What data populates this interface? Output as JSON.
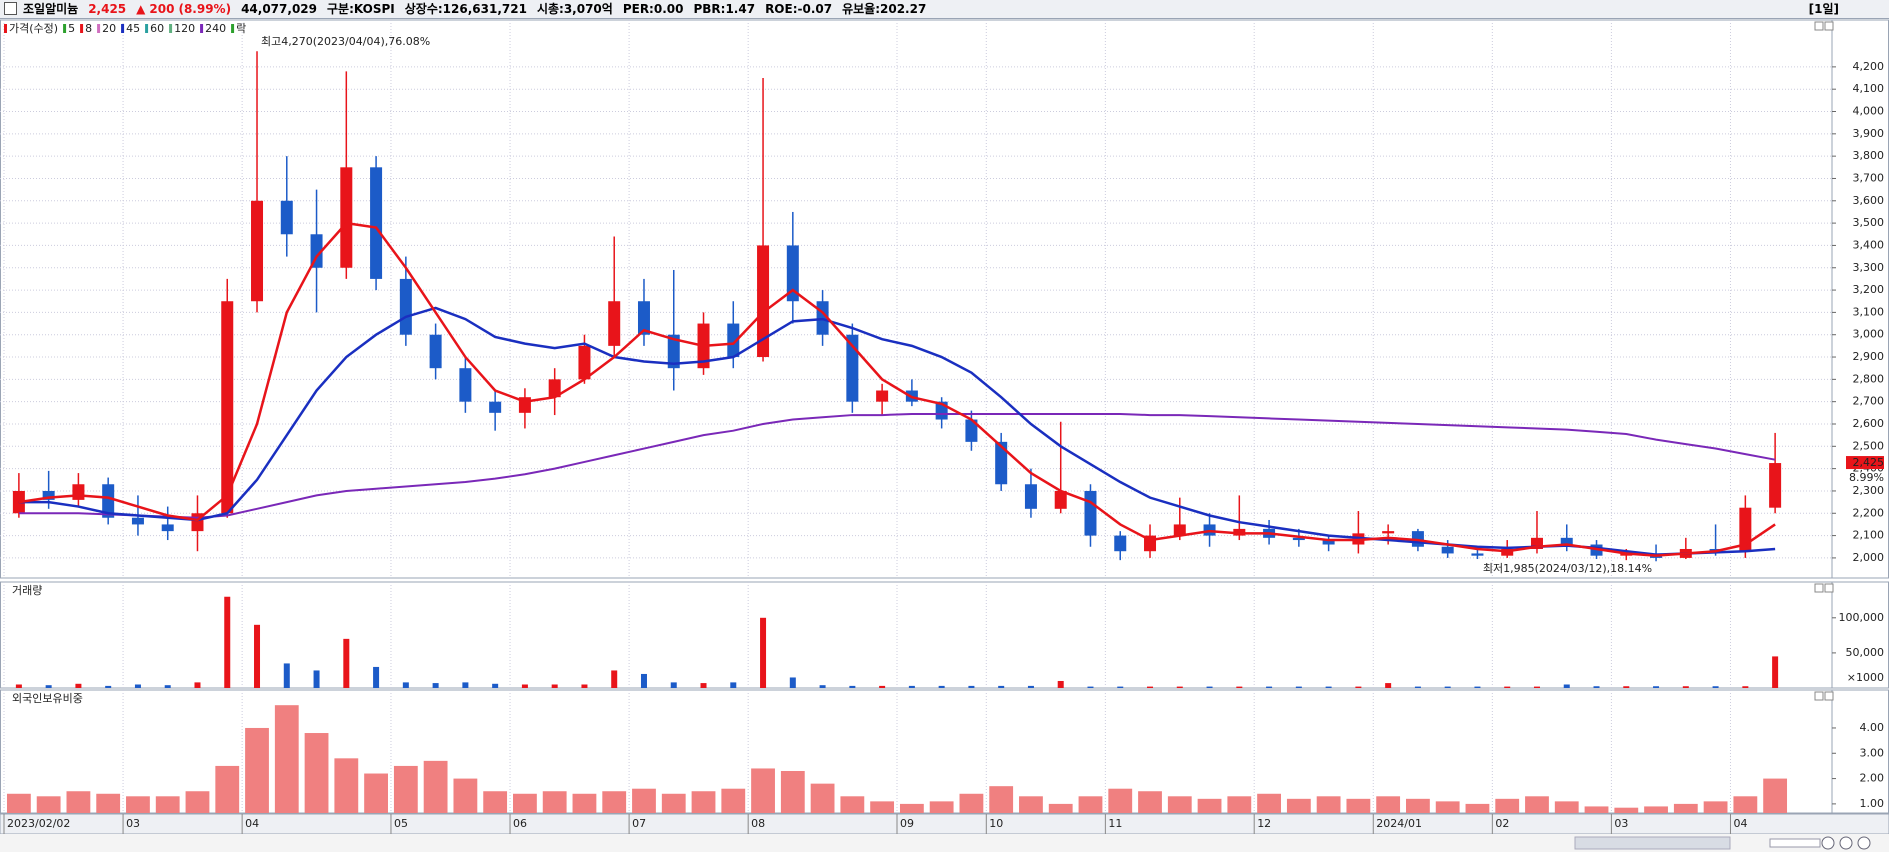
{
  "header": {
    "name": "조일알미늄",
    "price": "2,425",
    "arrow": "▲",
    "change": "200",
    "change_pct": "(8.99%)",
    "volume": "44,077,029",
    "items": [
      "구분:KOSPI",
      "상장수:126,631,721",
      "시총:3,070억",
      "PER:0.00",
      "PBR:1.47",
      "ROE:-0.07",
      "유보율:202.27"
    ],
    "period": "[1일]"
  },
  "chart_data": [
    {
      "type": "candlestick",
      "legend": [
        {
          "label": "가격(수정)",
          "color": "#e8141a"
        },
        {
          "label": "5",
          "color": "#2ca02c"
        },
        {
          "label": "8",
          "color": "#e8141a"
        },
        {
          "label": "20",
          "color": "#d070c0"
        },
        {
          "label": "45",
          "color": "#1a2fc0"
        },
        {
          "label": "60",
          "color": "#2aa0a0"
        },
        {
          "label": "120",
          "color": "#60b080"
        },
        {
          "label": "240",
          "color": "#7a28b8"
        },
        {
          "label": "락",
          "color": "#2ca02c"
        }
      ],
      "colors": {
        "up": "#e8141a",
        "down": "#1c5bc8"
      },
      "open": [
        2200,
        2300,
        2260,
        2330,
        2180,
        2150,
        2120,
        2200,
        3150,
        3600,
        3450,
        3300,
        3750,
        3250,
        3000,
        2850,
        2700,
        2650,
        2720,
        2800,
        2950,
        3150,
        3000,
        2850,
        3050,
        2900,
        3400,
        3150,
        3000,
        2700,
        2750,
        2700,
        2620,
        2520,
        2330,
        2220,
        2300,
        2100,
        2030,
        2100,
        2150,
        2100,
        2130,
        2090,
        2080,
        2060,
        2110,
        2120,
        2050,
        2020,
        2010,
        2040,
        2090,
        2060,
        2010,
        2020,
        2000,
        2040,
        2030,
        2225
      ],
      "high": [
        2380,
        2390,
        2380,
        2360,
        2280,
        2230,
        2280,
        3250,
        4270,
        3800,
        3650,
        4180,
        3800,
        3350,
        3050,
        2900,
        2750,
        2760,
        2850,
        3000,
        3440,
        3250,
        3290,
        3100,
        3150,
        4150,
        3550,
        3200,
        3050,
        2780,
        2800,
        2720,
        2660,
        2560,
        2400,
        2610,
        2330,
        2120,
        2150,
        2270,
        2200,
        2280,
        2170,
        2130,
        2100,
        2210,
        2150,
        2130,
        2080,
        2050,
        2080,
        2210,
        2150,
        2080,
        2040,
        2060,
        2090,
        2150,
        2280,
        2560
      ],
      "low": [
        2180,
        2220,
        2230,
        2150,
        2100,
        2080,
        2030,
        2180,
        3100,
        3350,
        3100,
        3250,
        3200,
        2950,
        2800,
        2650,
        2570,
        2580,
        2640,
        2780,
        2900,
        2950,
        2750,
        2820,
        2850,
        2880,
        3050,
        2950,
        2650,
        2640,
        2680,
        2580,
        2480,
        2300,
        2180,
        2200,
        2050,
        1990,
        2000,
        2080,
        2050,
        2080,
        2060,
        2050,
        2030,
        2020,
        2060,
        2030,
        2000,
        1995,
        2000,
        2020,
        2030,
        1995,
        1990,
        1985,
        1995,
        2010,
        2000,
        2200
      ],
      "close": [
        2300,
        2260,
        2330,
        2180,
        2150,
        2120,
        2200,
        3150,
        3600,
        3450,
        3300,
        3750,
        3250,
        3000,
        2850,
        2700,
        2650,
        2720,
        2800,
        2950,
        3150,
        3000,
        2850,
        3050,
        2900,
        3400,
        3150,
        3000,
        2700,
        2750,
        2700,
        2620,
        2520,
        2330,
        2220,
        2300,
        2100,
        2030,
        2100,
        2150,
        2100,
        2130,
        2090,
        2080,
        2060,
        2110,
        2120,
        2050,
        2020,
        2010,
        2040,
        2090,
        2060,
        2010,
        2020,
        2000,
        2040,
        2030,
        2225,
        2425
      ],
      "series": [
        {
          "color": "#7a28b8",
          "values": [
            2200,
            2200,
            2200,
            2195,
            2190,
            2185,
            2180,
            2190,
            2220,
            2250,
            2280,
            2300,
            2310,
            2320,
            2330,
            2340,
            2355,
            2375,
            2400,
            2430,
            2460,
            2490,
            2520,
            2550,
            2570,
            2600,
            2620,
            2630,
            2640,
            2640,
            2645,
            2645,
            2645,
            2645,
            2645,
            2645,
            2645,
            2645,
            2640,
            2640,
            2635,
            2630,
            2625,
            2620,
            2615,
            2610,
            2605,
            2600,
            2595,
            2590,
            2585,
            2580,
            2575,
            2565,
            2555,
            2530,
            2510,
            2490,
            2465,
            2440
          ]
        },
        {
          "color": "#1a2fc0",
          "values": [
            2250,
            2250,
            2230,
            2200,
            2190,
            2180,
            2170,
            2200,
            2350,
            2550,
            2750,
            2900,
            3000,
            3080,
            3120,
            3070,
            2990,
            2960,
            2940,
            2960,
            2900,
            2880,
            2870,
            2880,
            2900,
            2980,
            3060,
            3070,
            3030,
            2980,
            2950,
            2900,
            2830,
            2720,
            2600,
            2500,
            2420,
            2340,
            2270,
            2230,
            2190,
            2160,
            2140,
            2120,
            2100,
            2090,
            2080,
            2070,
            2060,
            2050,
            2045,
            2050,
            2055,
            2045,
            2030,
            2015,
            2020,
            2025,
            2030,
            2040
          ]
        },
        {
          "color": "#e8141a",
          "values": [
            2250,
            2270,
            2280,
            2270,
            2230,
            2190,
            2170,
            2280,
            2600,
            3100,
            3350,
            3500,
            3480,
            3300,
            3100,
            2900,
            2750,
            2700,
            2720,
            2800,
            2900,
            3020,
            2980,
            2950,
            2960,
            3100,
            3200,
            3100,
            2950,
            2800,
            2720,
            2690,
            2620,
            2500,
            2380,
            2300,
            2250,
            2150,
            2080,
            2100,
            2120,
            2110,
            2110,
            2095,
            2080,
            2080,
            2090,
            2080,
            2060,
            2040,
            2030,
            2050,
            2060,
            2040,
            2020,
            2010,
            2020,
            2030,
            2060,
            2150
          ]
        }
      ],
      "annotations": [
        "최고4,270(2023/04/04),76.08%",
        "최저1,985(2024/03/12),18.14%"
      ],
      "last_price_label": "2,425",
      "last_change_label": "8.99%",
      "ylim": [
        1910,
        4410
      ],
      "grid": true,
      "yticks": [
        {
          "value": 2000,
          "label": "2,000"
        },
        {
          "value": 2100,
          "label": "2,100"
        },
        {
          "value": 2200,
          "label": "2,200"
        },
        {
          "value": 2300,
          "label": "2,300"
        },
        {
          "value": 2400,
          "label": "2,400"
        },
        {
          "value": 2500,
          "label": "2,500"
        },
        {
          "value": 2600,
          "label": "2,600"
        },
        {
          "value": 2700,
          "label": "2,700"
        },
        {
          "value": 2800,
          "label": "2,800"
        },
        {
          "value": 2900,
          "label": "2,900"
        },
        {
          "value": 3000,
          "label": "3,000"
        },
        {
          "value": 3100,
          "label": "3,100"
        },
        {
          "value": 3200,
          "label": "3,200"
        },
        {
          "value": 3300,
          "label": "3,300"
        },
        {
          "value": 3400,
          "label": "3,400"
        },
        {
          "value": 3500,
          "label": "3,500"
        },
        {
          "value": 3600,
          "label": "3,600"
        },
        {
          "value": 3700,
          "label": "3,700"
        },
        {
          "value": 3800,
          "label": "3,800"
        },
        {
          "value": 3900,
          "label": "3,900"
        },
        {
          "value": 4000,
          "label": "4,000"
        },
        {
          "value": 4100,
          "label": "4,100"
        },
        {
          "value": 4200,
          "label": "4,200"
        }
      ]
    },
    {
      "type": "bar",
      "title": "거래량",
      "unit_label": "×1000",
      "values": [
        5000,
        4000,
        6000,
        3000,
        5000,
        4000,
        8000,
        130000,
        90000,
        35000,
        25000,
        70000,
        30000,
        8000,
        7000,
        8000,
        6000,
        5000,
        5000,
        5000,
        25000,
        20000,
        8000,
        7000,
        8000,
        100000,
        15000,
        4000,
        3000,
        3000,
        3000,
        3000,
        3000,
        3000,
        3000,
        10000,
        2000,
        2000,
        2000,
        2000,
        2000,
        2000,
        2000,
        2000,
        2000,
        2000,
        7000,
        2000,
        2000,
        2000,
        2000,
        2000,
        5000,
        2500,
        2500,
        2500,
        2500,
        2500,
        2500,
        45000
      ],
      "ylim": [
        0,
        151000
      ],
      "yticks": [
        {
          "value": 50000,
          "label": "50,000"
        },
        {
          "value": 100000,
          "label": "100,000"
        }
      ]
    },
    {
      "type": "bar",
      "title": "외국인보유비중",
      "color": "#f08080",
      "values": [
        1.4,
        1.3,
        1.5,
        1.4,
        1.3,
        1.3,
        1.5,
        2.5,
        4.0,
        4.9,
        3.8,
        2.8,
        2.2,
        2.5,
        2.7,
        2.0,
        1.5,
        1.4,
        1.5,
        1.4,
        1.5,
        1.6,
        1.4,
        1.5,
        1.6,
        2.4,
        2.3,
        1.8,
        1.3,
        1.1,
        1.0,
        1.1,
        1.4,
        1.7,
        1.3,
        1.0,
        1.3,
        1.6,
        1.5,
        1.3,
        1.2,
        1.3,
        1.4,
        1.2,
        1.3,
        1.2,
        1.3,
        1.2,
        1.1,
        1.0,
        1.2,
        1.3,
        1.1,
        0.9,
        0.85,
        0.9,
        1.0,
        1.1,
        1.3,
        2.0
      ],
      "ylim": [
        0.64,
        5.5
      ],
      "yticks": [
        {
          "value": 1,
          "label": "1.00"
        },
        {
          "value": 2,
          "label": "2.00"
        },
        {
          "value": 3,
          "label": "3.00"
        },
        {
          "value": 4,
          "label": "4.00"
        }
      ],
      "categories": [
        "2023/02/02",
        null,
        null,
        null,
        "03",
        null,
        null,
        null,
        "04",
        null,
        null,
        null,
        null,
        "05",
        null,
        null,
        null,
        "06",
        null,
        null,
        null,
        "07",
        null,
        null,
        null,
        "08",
        null,
        null,
        null,
        null,
        "09",
        null,
        null,
        "10",
        null,
        null,
        null,
        "11",
        null,
        null,
        null,
        null,
        "12",
        null,
        null,
        null,
        "2024/01",
        null,
        null,
        null,
        "02",
        null,
        null,
        null,
        "03",
        null,
        null,
        null,
        "04",
        null
      ]
    }
  ]
}
